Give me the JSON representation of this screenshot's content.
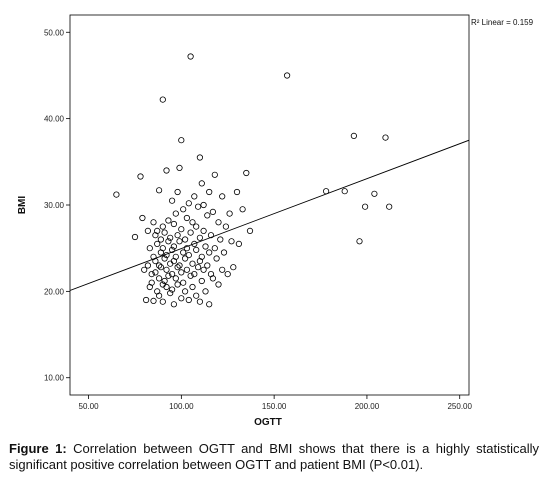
{
  "chart_data": {
    "type": "scatter",
    "title": "",
    "xlabel": "OGTT",
    "ylabel": "BMI",
    "xlim": [
      40,
      255
    ],
    "ylim": [
      8,
      52
    ],
    "xticks": [
      50,
      100,
      150,
      200,
      250
    ],
    "yticks": [
      10,
      20,
      30,
      40,
      50
    ],
    "xtick_labels": [
      "50.00",
      "100.00",
      "150.00",
      "200.00",
      "250.00"
    ],
    "ytick_labels": [
      "10.00",
      "20.00",
      "30.00",
      "40.00",
      "50.00"
    ],
    "grid": false,
    "fit_line": {
      "type": "linear",
      "x": [
        40,
        255
      ],
      "y": [
        20.1,
        37.5
      ]
    },
    "r2_label": "R² Linear = 0.159",
    "points": [
      [
        65,
        31.2
      ],
      [
        75,
        26.3
      ],
      [
        78,
        33.3
      ],
      [
        79,
        28.5
      ],
      [
        80,
        22.5
      ],
      [
        81,
        19.0
      ],
      [
        82,
        23.0
      ],
      [
        82,
        27.0
      ],
      [
        83,
        20.5
      ],
      [
        83,
        25.0
      ],
      [
        84,
        22.0
      ],
      [
        84,
        21.0
      ],
      [
        85,
        28.0
      ],
      [
        85,
        24.0
      ],
      [
        85,
        18.9
      ],
      [
        86,
        23.5
      ],
      [
        86,
        26.5
      ],
      [
        86,
        22.2
      ],
      [
        87,
        20.0
      ],
      [
        87,
        25.5
      ],
      [
        87,
        27.0
      ],
      [
        88,
        21.5
      ],
      [
        88,
        23.0
      ],
      [
        88,
        19.5
      ],
      [
        88,
        31.7
      ],
      [
        89,
        24.5
      ],
      [
        89,
        26.0
      ],
      [
        89,
        22.8
      ],
      [
        90,
        42.2
      ],
      [
        90,
        20.8
      ],
      [
        90,
        25.0
      ],
      [
        90,
        27.5
      ],
      [
        90,
        18.8
      ],
      [
        91,
        23.8
      ],
      [
        91,
        21.2
      ],
      [
        91,
        26.8
      ],
      [
        92,
        22.5
      ],
      [
        92,
        24.2
      ],
      [
        92,
        20.5
      ],
      [
        92,
        34.0
      ],
      [
        93,
        25.8
      ],
      [
        93,
        28.2
      ],
      [
        93,
        21.8
      ],
      [
        94,
        23.2
      ],
      [
        94,
        19.8
      ],
      [
        94,
        26.2
      ],
      [
        95,
        24.8
      ],
      [
        95,
        22.0
      ],
      [
        95,
        30.5
      ],
      [
        95,
        20.2
      ],
      [
        96,
        27.8
      ],
      [
        96,
        23.5
      ],
      [
        96,
        25.2
      ],
      [
        96,
        18.5
      ],
      [
        97,
        21.5
      ],
      [
        97,
        29.0
      ],
      [
        97,
        24.0
      ],
      [
        98,
        22.8
      ],
      [
        98,
        26.5
      ],
      [
        98,
        20.8
      ],
      [
        98,
        31.5
      ],
      [
        99,
        34.3
      ],
      [
        99,
        23.0
      ],
      [
        99,
        25.8
      ],
      [
        100,
        37.5
      ],
      [
        100,
        22.2
      ],
      [
        100,
        27.2
      ],
      [
        100,
        19.2
      ],
      [
        101,
        24.5
      ],
      [
        101,
        21.0
      ],
      [
        101,
        29.5
      ],
      [
        102,
        23.8
      ],
      [
        102,
        26.0
      ],
      [
        102,
        20.0
      ],
      [
        103,
        28.5
      ],
      [
        103,
        22.5
      ],
      [
        103,
        25.0
      ],
      [
        104,
        19.0
      ],
      [
        104,
        24.2
      ],
      [
        104,
        30.2
      ],
      [
        105,
        47.2
      ],
      [
        105,
        21.8
      ],
      [
        105,
        26.8
      ],
      [
        106,
        23.2
      ],
      [
        106,
        28.0
      ],
      [
        106,
        20.5
      ],
      [
        107,
        25.5
      ],
      [
        107,
        22.0
      ],
      [
        107,
        31.0
      ],
      [
        108,
        24.8
      ],
      [
        108,
        27.5
      ],
      [
        108,
        19.5
      ],
      [
        109,
        22.8
      ],
      [
        109,
        29.8
      ],
      [
        110,
        35.5
      ],
      [
        110,
        23.5
      ],
      [
        110,
        26.2
      ],
      [
        110,
        18.8
      ],
      [
        111,
        21.2
      ],
      [
        111,
        24.0
      ],
      [
        111,
        32.5
      ],
      [
        112,
        27.0
      ],
      [
        112,
        22.5
      ],
      [
        112,
        30.0
      ],
      [
        113,
        25.2
      ],
      [
        113,
        20.0
      ],
      [
        114,
        28.8
      ],
      [
        114,
        23.0
      ],
      [
        115,
        24.5
      ],
      [
        115,
        18.5
      ],
      [
        115,
        31.5
      ],
      [
        116,
        22.0
      ],
      [
        116,
        26.5
      ],
      [
        117,
        29.2
      ],
      [
        117,
        21.5
      ],
      [
        118,
        33.5
      ],
      [
        118,
        25.0
      ],
      [
        119,
        23.8
      ],
      [
        120,
        28.0
      ],
      [
        120,
        20.8
      ],
      [
        121,
        26.0
      ],
      [
        122,
        22.5
      ],
      [
        122,
        31.0
      ],
      [
        123,
        24.5
      ],
      [
        124,
        27.5
      ],
      [
        125,
        22.0
      ],
      [
        126,
        29.0
      ],
      [
        127,
        25.8
      ],
      [
        128,
        22.8
      ],
      [
        130,
        31.5
      ],
      [
        131,
        25.5
      ],
      [
        133,
        29.5
      ],
      [
        135,
        33.7
      ],
      [
        137,
        27.0
      ],
      [
        157,
        45.0
      ],
      [
        178,
        31.6
      ],
      [
        188,
        31.6
      ],
      [
        193,
        38.0
      ],
      [
        196,
        25.8
      ],
      [
        199,
        29.8
      ],
      [
        204,
        31.3
      ],
      [
        210,
        37.8
      ],
      [
        212,
        29.8
      ]
    ]
  },
  "caption": {
    "label": "Figure 1:",
    "text": " Correlation between OGTT and BMI shows that there is a highly statistically significant positive correlation between OGTT and patient BMI (P<0.01)."
  }
}
